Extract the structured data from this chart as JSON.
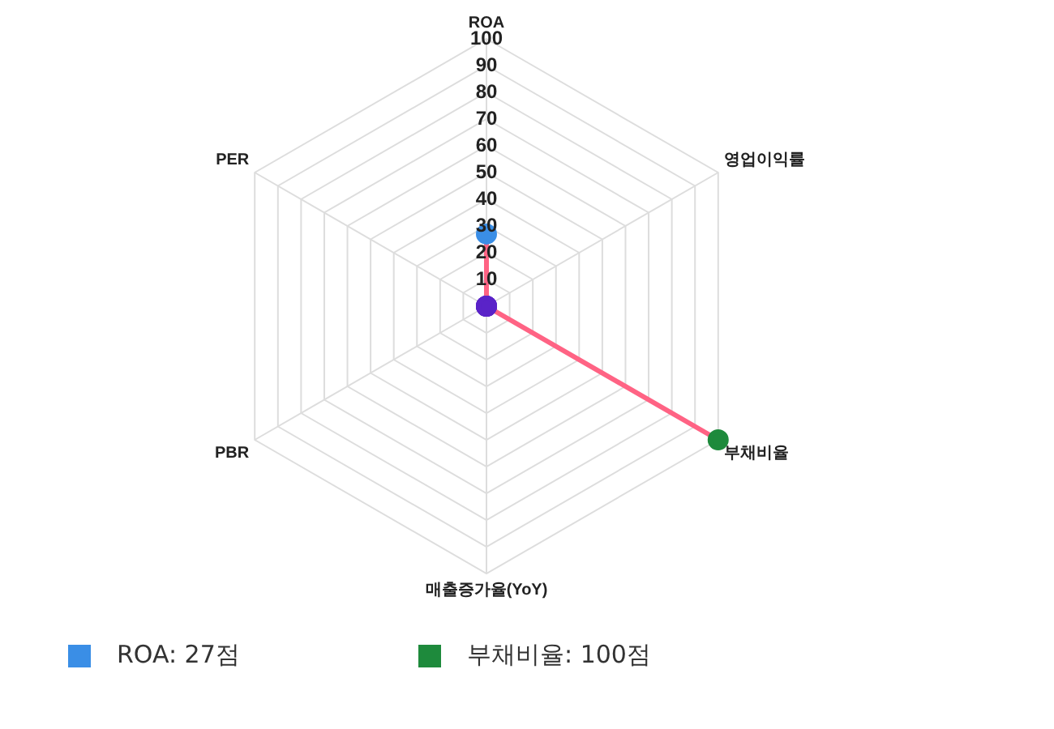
{
  "chart_data": {
    "type": "radar",
    "categories": [
      "ROA",
      "영업이익률",
      "부채비율",
      "매출증가율(YoY)",
      "PBR",
      "PER"
    ],
    "series": [
      {
        "color": "#ff6384",
        "colors": [
          "#3a8ee6",
          "#5a23c8",
          "#1e8a3c",
          "#5a23c8",
          "#5a23c8",
          "#5a23c8"
        ],
        "values": [
          27,
          0,
          100,
          0,
          0,
          0
        ]
      }
    ],
    "ylim": [
      0,
      100
    ],
    "yticks": [
      10,
      20,
      30,
      40,
      50,
      60,
      70,
      80,
      90,
      100
    ],
    "grid": true,
    "legend": false,
    "marker": "circle",
    "annotations": [
      "ROA: 27점",
      "부채비율: 100점"
    ]
  }
}
